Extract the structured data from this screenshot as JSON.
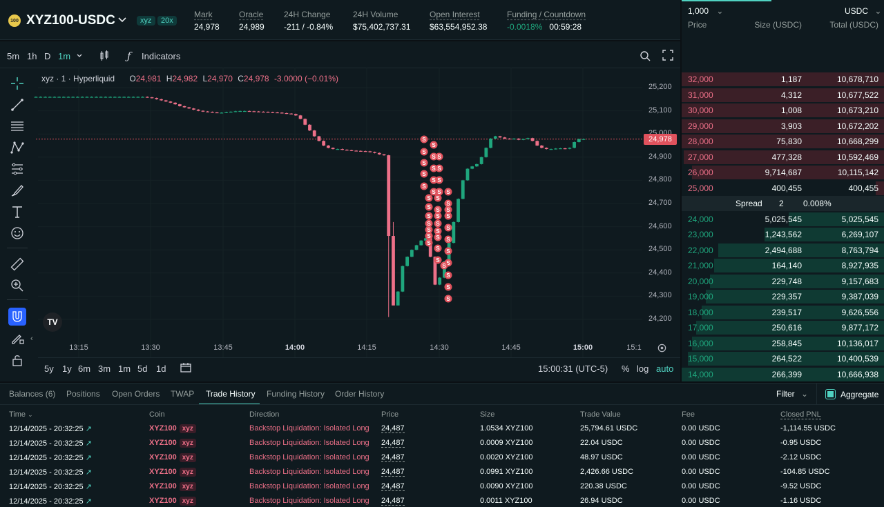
{
  "market": {
    "logo_text": "100",
    "symbol": "XYZ100-USDC",
    "tag": "xyz",
    "leverage": "20x"
  },
  "stats": [
    {
      "label": "Mark",
      "value": "24,978",
      "tone": "red"
    },
    {
      "label": "Oracle",
      "value": "24,989",
      "tone": "white"
    },
    {
      "label": "24H Change",
      "value": "-211 / -0.84%",
      "tone": "red"
    },
    {
      "label": "24H Volume",
      "value": "$75,402,737.31",
      "tone": "white"
    },
    {
      "label": "Open Interest",
      "value": "$63,554,952.38",
      "tone": "white"
    },
    {
      "label": "Funding / Countdown",
      "value": "-0.0018%",
      "value2": "00:59:28",
      "tone": "green"
    }
  ],
  "toolbar": {
    "intervals": [
      "5m",
      "1h",
      "D",
      "1m"
    ],
    "indicators_label": "Indicators"
  },
  "legend": {
    "name": "xyz · 1 · Hyperliquid",
    "o_label": "O",
    "o": "24,981",
    "h_label": "H",
    "h": "24,982",
    "l_label": "L",
    "l": "24,970",
    "c_label": "C",
    "c": "24,978",
    "change": "-3.0000 (−0.01%)"
  },
  "chart_data": {
    "type": "candlestick",
    "y_ticks": [
      "25,200",
      "25,100",
      "25,000",
      "24,900",
      "24,800",
      "24,700",
      "24,600",
      "24,500",
      "24,400",
      "24,300",
      "24,200"
    ],
    "x_ticks": [
      "13:15",
      "13:30",
      "13:45",
      "14:00",
      "14:15",
      "14:30",
      "14:45",
      "15:00",
      "15:1"
    ],
    "ylim": [
      24180,
      25240
    ],
    "last_price": 24978,
    "last_price_label": "24,978",
    "liquidation_marker": "S",
    "close_series": [
      25160,
      25160,
      25160,
      25160,
      25160,
      25160,
      25160,
      25160,
      25160,
      25160,
      25160,
      25160,
      25160,
      25160,
      25160,
      25160,
      25160,
      25160,
      25160,
      25160,
      25160,
      25160,
      25160,
      25160,
      25158,
      25155,
      25150,
      25145,
      25140,
      25135,
      25128,
      25120,
      25115,
      25110,
      25105,
      25100,
      25097,
      25095,
      25093,
      25092,
      25092,
      25094,
      25096,
      25098,
      25099,
      25099,
      25098,
      25097,
      25096,
      25095,
      25094,
      25093,
      25092,
      25090,
      25088,
      25086,
      25080,
      25065,
      25040,
      25015,
      24990,
      24970,
      24950,
      24940,
      24935,
      24935,
      24932,
      24930,
      24928,
      24927,
      24926,
      24925,
      24922,
      24918,
      24912,
      24908,
      24560,
      24260,
      24320,
      24430,
      24470,
      24500,
      24520,
      24540,
      24550,
      24470,
      24350,
      24380,
      24450,
      24530,
      24620,
      24720,
      24800,
      24850,
      24860,
      24870,
      24900,
      24940,
      24980,
      24990,
      24985,
      24980,
      24978,
      24980,
      24975,
      24978,
      24982,
      24970,
      24950,
      24940,
      24935,
      24935,
      24937,
      24938,
      24936,
      24940,
      24965,
      24978,
      24978
    ],
    "timeframes": [
      "5y",
      "1y",
      "6m",
      "3m",
      "1m",
      "5d",
      "1d"
    ],
    "clock": "15:00:31 (UTC-5)",
    "scale_options": [
      "%",
      "log",
      "auto"
    ]
  },
  "orderbook": {
    "size_select": "1,000",
    "currency_select": "USDC",
    "headers": [
      "Price",
      "Size (USDC)",
      "Total (USDC)"
    ],
    "asks": [
      {
        "price": "32,000",
        "size": "1,187",
        "total": "10,678,710",
        "depth": 1.0
      },
      {
        "price": "31,000",
        "size": "4,312",
        "total": "10,677,522",
        "depth": 1.0
      },
      {
        "price": "30,000",
        "size": "1,008",
        "total": "10,673,210",
        "depth": 1.0
      },
      {
        "price": "29,000",
        "size": "3,903",
        "total": "10,672,202",
        "depth": 1.0
      },
      {
        "price": "28,000",
        "size": "75,830",
        "total": "10,668,299",
        "depth": 1.0
      },
      {
        "price": "27,000",
        "size": "477,328",
        "total": "10,592,469",
        "depth": 0.99
      },
      {
        "price": "26,000",
        "size": "9,714,687",
        "total": "10,115,142",
        "depth": 0.95
      },
      {
        "price": "25,000",
        "size": "400,455",
        "total": "400,455",
        "depth": 0.04
      }
    ],
    "spread_label": "Spread",
    "spread_value": "2",
    "spread_pct": "0.008%",
    "bids": [
      {
        "price": "24,000",
        "size": "5,025,545",
        "total": "5,025,545",
        "depth": 0.47
      },
      {
        "price": "23,000",
        "size": "1,243,562",
        "total": "6,269,107",
        "depth": 0.59
      },
      {
        "price": "22,000",
        "size": "2,494,688",
        "total": "8,763,794",
        "depth": 0.82
      },
      {
        "price": "21,000",
        "size": "164,140",
        "total": "8,927,935",
        "depth": 0.84
      },
      {
        "price": "20,000",
        "size": "229,748",
        "total": "9,157,683",
        "depth": 0.86
      },
      {
        "price": "19,000",
        "size": "229,357",
        "total": "9,387,039",
        "depth": 0.88
      },
      {
        "price": "18,000",
        "size": "239,517",
        "total": "9,626,556",
        "depth": 0.9
      },
      {
        "price": "17,000",
        "size": "250,616",
        "total": "9,877,172",
        "depth": 0.93
      },
      {
        "price": "16,000",
        "size": "258,845",
        "total": "10,136,017",
        "depth": 0.95
      },
      {
        "price": "15,000",
        "size": "264,522",
        "total": "10,400,539",
        "depth": 0.97
      },
      {
        "price": "14,000",
        "size": "266,399",
        "total": "10,666,938",
        "depth": 1.0
      }
    ]
  },
  "bottom": {
    "tabs": [
      "Balances (6)",
      "Positions",
      "Open Orders",
      "TWAP",
      "Trade History",
      "Funding History",
      "Order History"
    ],
    "filter_label": "Filter",
    "aggregate_label": "Aggregate",
    "columns": [
      "Time",
      "Coin",
      "Direction",
      "Price",
      "Size",
      "Trade Value",
      "Fee",
      "Closed PNL"
    ],
    "rows": [
      [
        "12/14/2025 - 20:32:25",
        "XYZ100",
        "xyz",
        "Backstop Liquidation: Isolated Long",
        "24,487",
        "1.0534 XYZ100",
        "25,794.61 USDC",
        "0.00 USDC",
        "-1,114.55 USDC"
      ],
      [
        "12/14/2025 - 20:32:25",
        "XYZ100",
        "xyz",
        "Backstop Liquidation: Isolated Long",
        "24,487",
        "0.0009 XYZ100",
        "22.04 USDC",
        "0.00 USDC",
        "-0.95 USDC"
      ],
      [
        "12/14/2025 - 20:32:25",
        "XYZ100",
        "xyz",
        "Backstop Liquidation: Isolated Long",
        "24,487",
        "0.0020 XYZ100",
        "48.97 USDC",
        "0.00 USDC",
        "-2.12 USDC"
      ],
      [
        "12/14/2025 - 20:32:25",
        "XYZ100",
        "xyz",
        "Backstop Liquidation: Isolated Long",
        "24,487",
        "0.0991 XYZ100",
        "2,426.66 USDC",
        "0.00 USDC",
        "-104.85 USDC"
      ],
      [
        "12/14/2025 - 20:32:25",
        "XYZ100",
        "xyz",
        "Backstop Liquidation: Isolated Long",
        "24,487",
        "0.0090 XYZ100",
        "220.38 USDC",
        "0.00 USDC",
        "-9.52 USDC"
      ],
      [
        "12/14/2025 - 20:32:25",
        "XYZ100",
        "xyz",
        "Backstop Liquidation: Isolated Long",
        "24,487",
        "0.0011 XYZ100",
        "26.94 USDC",
        "0.00 USDC",
        "-1.16 USDC"
      ]
    ]
  },
  "colors": {
    "up": "#1fa67d",
    "down": "#ed7088",
    "accent": "#50d2c1",
    "liq": "#e0525d"
  }
}
